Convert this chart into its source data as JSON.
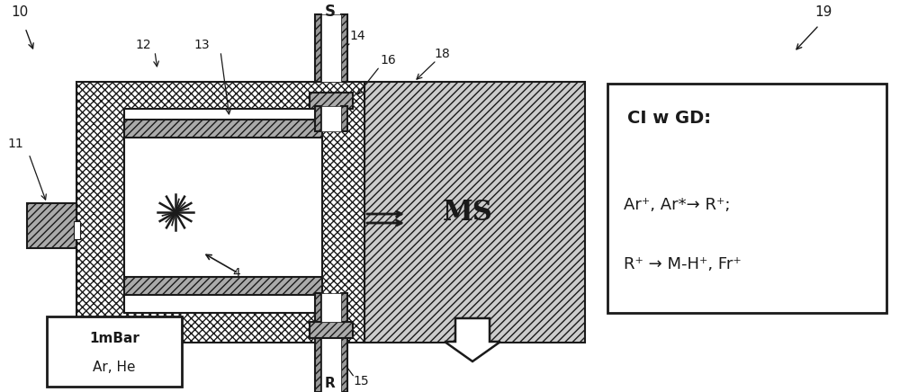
{
  "bg_color": "#ffffff",
  "diagram_color": "#1a1a1a",
  "label_10": "10",
  "label_19": "19",
  "label_S": "S",
  "label_11": "11",
  "label_12": "12",
  "label_13": "13",
  "label_14": "14",
  "label_15": "15",
  "label_16": "16",
  "label_18": "18",
  "label_MS": "MS",
  "label_R": "R",
  "label_4": "4",
  "box1_text_line1": "1mBar",
  "box1_text_line2": "Ar, He",
  "box2_line1": "CI w GD:",
  "box2_line2": "Ar⁺, Ar*→ R⁺;",
  "box2_line3": "R⁺ → M-H⁺, Fr⁺"
}
